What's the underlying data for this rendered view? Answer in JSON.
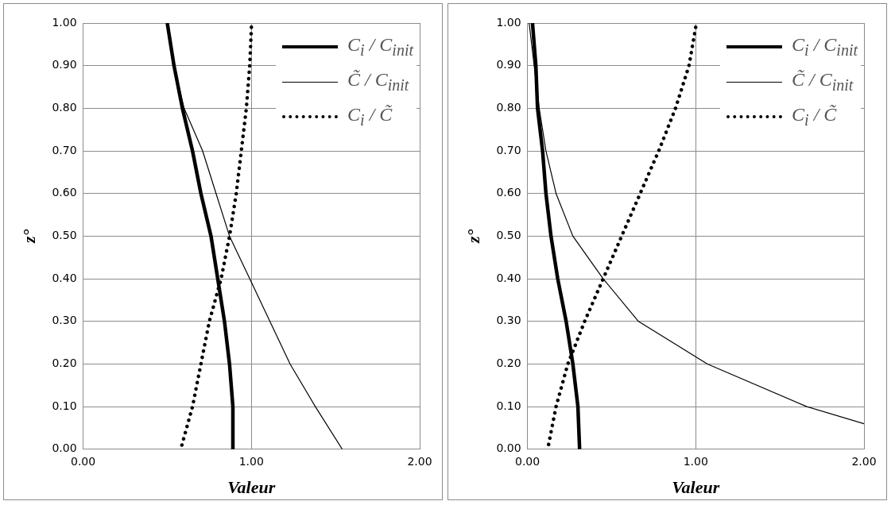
{
  "chart_data": [
    {
      "type": "line",
      "xlabel": "Valeur",
      "ylabel": "z°",
      "xlim": [
        0,
        2
      ],
      "ylim": [
        0,
        1
      ],
      "xticks": [
        {
          "value": 0,
          "label": "0.00"
        },
        {
          "value": 1,
          "label": "1.00"
        },
        {
          "value": 2,
          "label": "2.00"
        }
      ],
      "yticks": [
        {
          "value": 0,
          "label": "0.00"
        },
        {
          "value": 0.1,
          "label": "0.10"
        },
        {
          "value": 0.2,
          "label": "0.20"
        },
        {
          "value": 0.3,
          "label": "0.30"
        },
        {
          "value": 0.4,
          "label": "0.40"
        },
        {
          "value": 0.5,
          "label": "0.50"
        },
        {
          "value": 0.6,
          "label": "0.60"
        },
        {
          "value": 0.7,
          "label": "0.70"
        },
        {
          "value": 0.8,
          "label": "0.80"
        },
        {
          "value": 0.9,
          "label": "0.90"
        },
        {
          "value": 1,
          "label": "1.00"
        }
      ],
      "grid": true,
      "legend": "top right",
      "marker": "none",
      "series": [
        {
          "name": "C$_{i}$ / C$_{init}$",
          "color": "#000000",
          "line_style": "solid",
          "x": [
            0.5,
            0.54,
            0.59,
            0.65,
            0.7,
            0.76,
            0.8,
            0.84,
            0.87,
            0.89,
            0.89
          ],
          "values": [
            1.0,
            0.9,
            0.8,
            0.7,
            0.6,
            0.5,
            0.4,
            0.3,
            0.2,
            0.1,
            0.0
          ]
        },
        {
          "name": "C̃ / C$_{init}$",
          "color": "#000000",
          "line_style": "solid",
          "x": [
            0.5,
            0.54,
            0.6,
            0.71,
            0.79,
            0.87,
            0.99,
            1.11,
            1.23,
            1.38,
            1.54
          ],
          "values": [
            1.0,
            0.9,
            0.8,
            0.7,
            0.6,
            0.5,
            0.4,
            0.3,
            0.2,
            0.1,
            0.0
          ]
        },
        {
          "name": "C$_{i}$ / C̃",
          "color": "#000000",
          "line_style": "dotted",
          "x": [
            1.0,
            0.99,
            0.97,
            0.94,
            0.91,
            0.87,
            0.82,
            0.75,
            0.7,
            0.65,
            0.58
          ],
          "values": [
            0.99,
            0.9,
            0.8,
            0.7,
            0.6,
            0.5,
            0.4,
            0.3,
            0.2,
            0.1,
            0.0
          ]
        }
      ]
    },
    {
      "type": "line",
      "xlabel": "Valeur",
      "ylabel": "z°",
      "xlim": [
        0,
        2
      ],
      "ylim": [
        0,
        1
      ],
      "xticks": [
        {
          "value": 0,
          "label": "0.00"
        },
        {
          "value": 1,
          "label": "1.00"
        },
        {
          "value": 2,
          "label": "2.00"
        }
      ],
      "yticks": [
        {
          "value": 0,
          "label": "0.00"
        },
        {
          "value": 0.1,
          "label": "0.10"
        },
        {
          "value": 0.2,
          "label": "0.20"
        },
        {
          "value": 0.3,
          "label": "0.30"
        },
        {
          "value": 0.4,
          "label": "0.40"
        },
        {
          "value": 0.5,
          "label": "0.50"
        },
        {
          "value": 0.6,
          "label": "0.60"
        },
        {
          "value": 0.7,
          "label": "0.70"
        },
        {
          "value": 0.8,
          "label": "0.80"
        },
        {
          "value": 0.9,
          "label": "0.90"
        },
        {
          "value": 1,
          "label": "1.00"
        }
      ],
      "grid": true,
      "legend": "top right",
      "marker": "none",
      "series": [
        {
          "name": "C$_{i}$ / C$_{init}$",
          "color": "#000000",
          "line_style": "solid",
          "x": [
            0.03,
            0.05,
            0.06,
            0.09,
            0.11,
            0.14,
            0.18,
            0.23,
            0.27,
            0.3,
            0.31
          ],
          "values": [
            1.0,
            0.9,
            0.8,
            0.7,
            0.6,
            0.5,
            0.4,
            0.3,
            0.2,
            0.1,
            0.0
          ]
        },
        {
          "name": "C̃ / C$_{init}$",
          "color": "#000000",
          "line_style": "solid",
          "x": [
            0.01,
            0.04,
            0.07,
            0.11,
            0.17,
            0.27,
            0.45,
            0.66,
            1.07,
            1.66,
            2.0
          ],
          "values": [
            1.0,
            0.9,
            0.8,
            0.7,
            0.6,
            0.5,
            0.4,
            0.3,
            0.2,
            0.1,
            0.06
          ]
        },
        {
          "name": "C$_{i}$ / C̃",
          "color": "#000000",
          "line_style": "dotted",
          "x": [
            1.0,
            0.96,
            0.88,
            0.78,
            0.67,
            0.56,
            0.45,
            0.34,
            0.24,
            0.17,
            0.12
          ],
          "values": [
            0.99,
            0.9,
            0.8,
            0.7,
            0.6,
            0.5,
            0.4,
            0.3,
            0.2,
            0.1,
            0.0
          ]
        }
      ]
    }
  ]
}
